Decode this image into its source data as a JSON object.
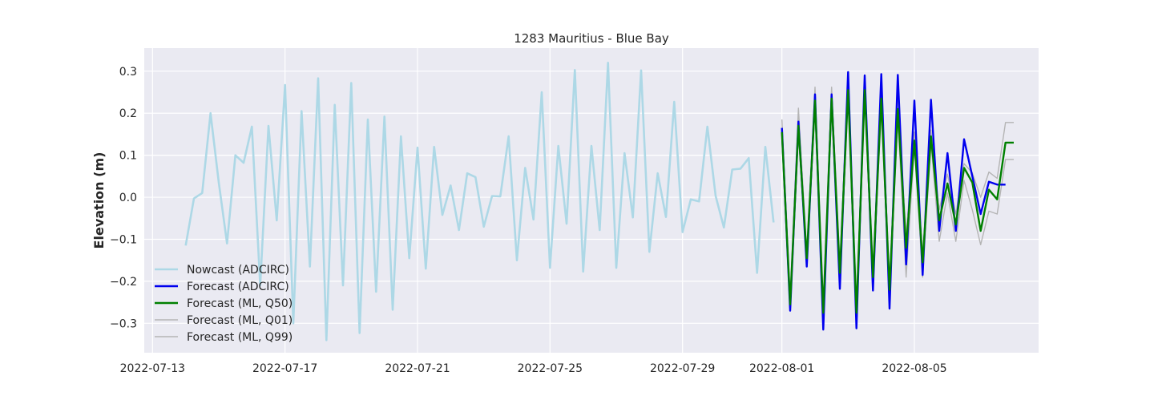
{
  "chart_data": {
    "type": "line",
    "title": "1283 Mauritius - Blue Bay",
    "xlabel": "",
    "ylabel": "Elevation (m)",
    "xlim": [
      "2022-07-12T18:00",
      "2022-08-08T18:00"
    ],
    "ylim": [
      -0.37,
      0.355
    ],
    "x_ticks": [
      "2022-07-13",
      "2022-07-17",
      "2022-07-21",
      "2022-07-25",
      "2022-07-29",
      "2022-08-01",
      "2022-08-05"
    ],
    "y_ticks": [
      -0.3,
      -0.2,
      -0.1,
      0.0,
      0.1,
      0.2,
      0.3
    ],
    "y_tick_labels": [
      "−0.3",
      "−0.2",
      "−0.1",
      "0.0",
      "0.1",
      "0.2",
      "0.3"
    ],
    "grid": true,
    "legend_position": "lower-left",
    "series": [
      {
        "name": "Nowcast (ADCIRC)",
        "color": "#add8e6",
        "x": [
          "2022-07-14T00:00",
          "2022-07-14T06:00",
          "2022-07-14T12:00",
          "2022-07-14T18:00",
          "2022-07-15T00:00",
          "2022-07-15T06:00",
          "2022-07-15T12:00",
          "2022-07-15T18:00",
          "2022-07-16T00:00",
          "2022-07-16T06:00",
          "2022-07-16T12:00",
          "2022-07-16T18:00",
          "2022-07-17T00:00",
          "2022-07-17T06:00",
          "2022-07-17T12:00",
          "2022-07-17T18:00",
          "2022-07-18T00:00",
          "2022-07-18T06:00",
          "2022-07-18T12:00",
          "2022-07-18T18:00",
          "2022-07-19T00:00",
          "2022-07-19T06:00",
          "2022-07-19T12:00",
          "2022-07-19T18:00",
          "2022-07-20T00:00",
          "2022-07-20T06:00",
          "2022-07-20T12:00",
          "2022-07-20T18:00",
          "2022-07-21T00:00",
          "2022-07-21T06:00",
          "2022-07-21T12:00",
          "2022-07-21T18:00",
          "2022-07-22T00:00",
          "2022-07-22T06:00",
          "2022-07-22T12:00",
          "2022-07-22T18:00",
          "2022-07-23T00:00",
          "2022-07-23T06:00",
          "2022-07-23T12:00",
          "2022-07-23T18:00",
          "2022-07-24T00:00",
          "2022-07-24T06:00",
          "2022-07-24T12:00",
          "2022-07-24T18:00",
          "2022-07-25T00:00",
          "2022-07-25T06:00",
          "2022-07-25T12:00",
          "2022-07-25T18:00",
          "2022-07-26T00:00",
          "2022-07-26T06:00",
          "2022-07-26T12:00",
          "2022-07-26T18:00",
          "2022-07-27T00:00",
          "2022-07-27T06:00",
          "2022-07-27T12:00",
          "2022-07-27T18:00",
          "2022-07-28T00:00",
          "2022-07-28T06:00",
          "2022-07-28T12:00",
          "2022-07-28T18:00",
          "2022-07-29T00:00",
          "2022-07-29T06:00",
          "2022-07-29T12:00",
          "2022-07-29T18:00",
          "2022-07-30T00:00",
          "2022-07-30T06:00",
          "2022-07-30T12:00",
          "2022-07-30T18:00",
          "2022-07-31T00:00",
          "2022-07-31T06:00",
          "2022-07-31T12:00",
          "2022-07-31T18:00"
        ],
        "values": [
          -0.115,
          -0.003,
          0.01,
          0.2,
          0.035,
          -0.11,
          0.1,
          0.082,
          0.168,
          -0.21,
          0.17,
          -0.055,
          0.267,
          -0.3,
          0.205,
          -0.165,
          0.283,
          -0.34,
          0.22,
          -0.21,
          0.272,
          -0.323,
          0.185,
          -0.225,
          0.192,
          -0.268,
          0.145,
          -0.145,
          0.118,
          -0.17,
          0.12,
          -0.042,
          0.028,
          -0.078,
          0.057,
          0.048,
          -0.07,
          0.003,
          0.002,
          0.145,
          -0.15,
          0.07,
          -0.053,
          0.25,
          -0.168,
          0.122,
          -0.063,
          0.303,
          -0.177,
          0.122,
          -0.078,
          0.32,
          -0.168,
          0.105,
          -0.048,
          0.302,
          -0.13,
          0.057,
          -0.047,
          0.227,
          -0.083,
          -0.005,
          -0.01,
          0.168,
          0.003,
          -0.072,
          0.066,
          0.068,
          0.093,
          -0.18,
          0.12,
          -0.06
        ]
      },
      {
        "name": "Forecast (ADCIRC)",
        "color": "#0000ee",
        "x": [
          "2022-08-01T00:00",
          "2022-08-01T06:00",
          "2022-08-01T12:00",
          "2022-08-01T18:00",
          "2022-08-02T00:00",
          "2022-08-02T06:00",
          "2022-08-02T12:00",
          "2022-08-02T18:00",
          "2022-08-03T00:00",
          "2022-08-03T06:00",
          "2022-08-03T12:00",
          "2022-08-03T18:00",
          "2022-08-04T00:00",
          "2022-08-04T06:00",
          "2022-08-04T12:00",
          "2022-08-04T18:00",
          "2022-08-05T00:00",
          "2022-08-05T06:00",
          "2022-08-05T12:00",
          "2022-08-05T18:00",
          "2022-08-06T00:00",
          "2022-08-06T06:00",
          "2022-08-06T12:00",
          "2022-08-06T18:00",
          "2022-08-07T00:00",
          "2022-08-07T06:00",
          "2022-08-07T12:00",
          "2022-08-07T18:00"
        ],
        "values": [
          0.165,
          -0.27,
          0.18,
          -0.165,
          0.245,
          -0.315,
          0.245,
          -0.218,
          0.298,
          -0.312,
          0.29,
          -0.222,
          0.293,
          -0.265,
          0.291,
          -0.16,
          0.23,
          -0.185,
          0.232,
          -0.08,
          0.105,
          -0.08,
          0.138,
          0.05,
          -0.04,
          0.037,
          0.03,
          0.03
        ]
      },
      {
        "name": "Forecast (ML, Q50)",
        "color": "#008000",
        "x": [
          "2022-08-01T00:00",
          "2022-08-01T06:00",
          "2022-08-01T12:00",
          "2022-08-01T18:00",
          "2022-08-02T00:00",
          "2022-08-02T06:00",
          "2022-08-02T12:00",
          "2022-08-02T18:00",
          "2022-08-03T00:00",
          "2022-08-03T06:00",
          "2022-08-03T12:00",
          "2022-08-03T18:00",
          "2022-08-04T00:00",
          "2022-08-04T06:00",
          "2022-08-04T12:00",
          "2022-08-04T18:00",
          "2022-08-05T00:00",
          "2022-08-05T06:00",
          "2022-08-05T12:00",
          "2022-08-05T18:00",
          "2022-08-06T00:00",
          "2022-08-06T06:00",
          "2022-08-06T12:00",
          "2022-08-06T18:00",
          "2022-08-07T00:00",
          "2022-08-07T06:00",
          "2022-08-07T12:00",
          "2022-08-07T18:00",
          "2022-08-08T00:00"
        ],
        "values": [
          0.155,
          -0.255,
          0.17,
          -0.145,
          0.23,
          -0.275,
          0.235,
          -0.18,
          0.255,
          -0.275,
          0.255,
          -0.19,
          0.235,
          -0.22,
          0.21,
          -0.12,
          0.135,
          -0.155,
          0.145,
          -0.055,
          0.033,
          -0.065,
          0.07,
          0.035,
          -0.08,
          0.018,
          -0.005,
          0.13,
          0.13
        ]
      },
      {
        "name": "Forecast (ML, Q01)",
        "color": "#b4b4b4",
        "x": [
          "2022-08-01T00:00",
          "2022-08-01T06:00",
          "2022-08-01T12:00",
          "2022-08-01T18:00",
          "2022-08-02T00:00",
          "2022-08-02T06:00",
          "2022-08-02T12:00",
          "2022-08-02T18:00",
          "2022-08-03T00:00",
          "2022-08-03T06:00",
          "2022-08-03T12:00",
          "2022-08-03T18:00",
          "2022-08-04T00:00",
          "2022-08-04T06:00",
          "2022-08-04T12:00",
          "2022-08-04T18:00",
          "2022-08-05T00:00",
          "2022-08-05T06:00",
          "2022-08-05T12:00",
          "2022-08-05T18:00",
          "2022-08-06T00:00",
          "2022-08-06T06:00",
          "2022-08-06T12:00",
          "2022-08-06T18:00",
          "2022-08-07T00:00",
          "2022-08-07T06:00",
          "2022-08-07T12:00",
          "2022-08-07T18:00",
          "2022-08-08T00:00"
        ],
        "values": [
          0.135,
          -0.24,
          0.15,
          -0.155,
          0.21,
          -0.26,
          0.215,
          -0.2,
          0.235,
          -0.27,
          0.235,
          -0.2,
          0.21,
          -0.235,
          0.19,
          -0.19,
          0.12,
          -0.19,
          0.13,
          -0.105,
          0.01,
          -0.105,
          0.04,
          -0.03,
          -0.113,
          -0.033,
          -0.04,
          0.09,
          0.09
        ]
      },
      {
        "name": "Forecast (ML, Q99)",
        "color": "#b4b4b4",
        "x": [
          "2022-08-01T00:00",
          "2022-08-01T06:00",
          "2022-08-01T12:00",
          "2022-08-01T18:00",
          "2022-08-02T00:00",
          "2022-08-02T06:00",
          "2022-08-02T12:00",
          "2022-08-02T18:00",
          "2022-08-03T00:00",
          "2022-08-03T06:00",
          "2022-08-03T12:00",
          "2022-08-03T18:00",
          "2022-08-04T00:00",
          "2022-08-04T06:00",
          "2022-08-04T12:00",
          "2022-08-04T18:00",
          "2022-08-05T00:00",
          "2022-08-05T06:00",
          "2022-08-05T12:00",
          "2022-08-05T18:00",
          "2022-08-06T00:00",
          "2022-08-06T06:00",
          "2022-08-06T12:00",
          "2022-08-06T18:00",
          "2022-08-07T00:00",
          "2022-08-07T06:00",
          "2022-08-07T12:00",
          "2022-08-07T18:00",
          "2022-08-08T00:00"
        ],
        "values": [
          0.185,
          -0.235,
          0.212,
          -0.13,
          0.262,
          -0.25,
          0.262,
          -0.16,
          0.28,
          -0.255,
          0.275,
          -0.17,
          0.26,
          -0.2,
          0.23,
          -0.09,
          0.155,
          -0.135,
          0.16,
          -0.03,
          0.055,
          -0.04,
          0.08,
          0.058,
          0.0,
          0.06,
          0.045,
          0.178,
          0.178
        ]
      }
    ]
  }
}
